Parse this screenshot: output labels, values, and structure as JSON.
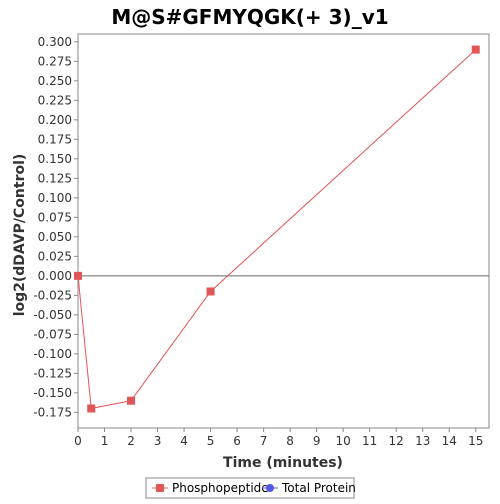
{
  "chart_data": {
    "type": "line",
    "title": "M@S#GFMYQGK(+ 3)_v1",
    "xlabel": "Time (minutes)",
    "ylabel": "log2(dDAVP/Control)",
    "xlim": [
      0,
      15.5
    ],
    "ylim": [
      -0.195,
      0.31
    ],
    "x_ticks": [
      0,
      1,
      2,
      3,
      4,
      5,
      6,
      7,
      8,
      9,
      10,
      11,
      12,
      13,
      14,
      15
    ],
    "y_ticks": [
      0.3,
      0.275,
      0.25,
      0.225,
      0.2,
      0.175,
      0.15,
      0.125,
      0.1,
      0.075,
      0.05,
      0.025,
      0.0,
      -0.025,
      -0.05,
      -0.075,
      -0.1,
      -0.125,
      -0.15,
      -0.175
    ],
    "y_tick_labels": [
      "0.300",
      "0.275",
      "0.250",
      "0.225",
      "0.200",
      "0.175",
      "0.150",
      "0.125",
      "0.100",
      "0.075",
      "0.050",
      "0.025",
      "0.000",
      "-0.025",
      "-0.050",
      "-0.075",
      "-0.100",
      "-0.125",
      "-0.150",
      "-0.175"
    ],
    "zero_line": true,
    "grid": false,
    "legend_position": "bottom",
    "series": [
      {
        "name": "Phosphopeptide",
        "color": "#e05555",
        "marker": "square",
        "points": [
          {
            "x": 0,
            "y": 0.0
          },
          {
            "x": 0.5,
            "y": -0.17
          },
          {
            "x": 2,
            "y": -0.16
          },
          {
            "x": 5,
            "y": -0.02
          },
          {
            "x": 15,
            "y": 0.29
          }
        ]
      },
      {
        "name": "Total Protein",
        "color": "#5555e6",
        "marker": "circle",
        "points": []
      }
    ]
  }
}
